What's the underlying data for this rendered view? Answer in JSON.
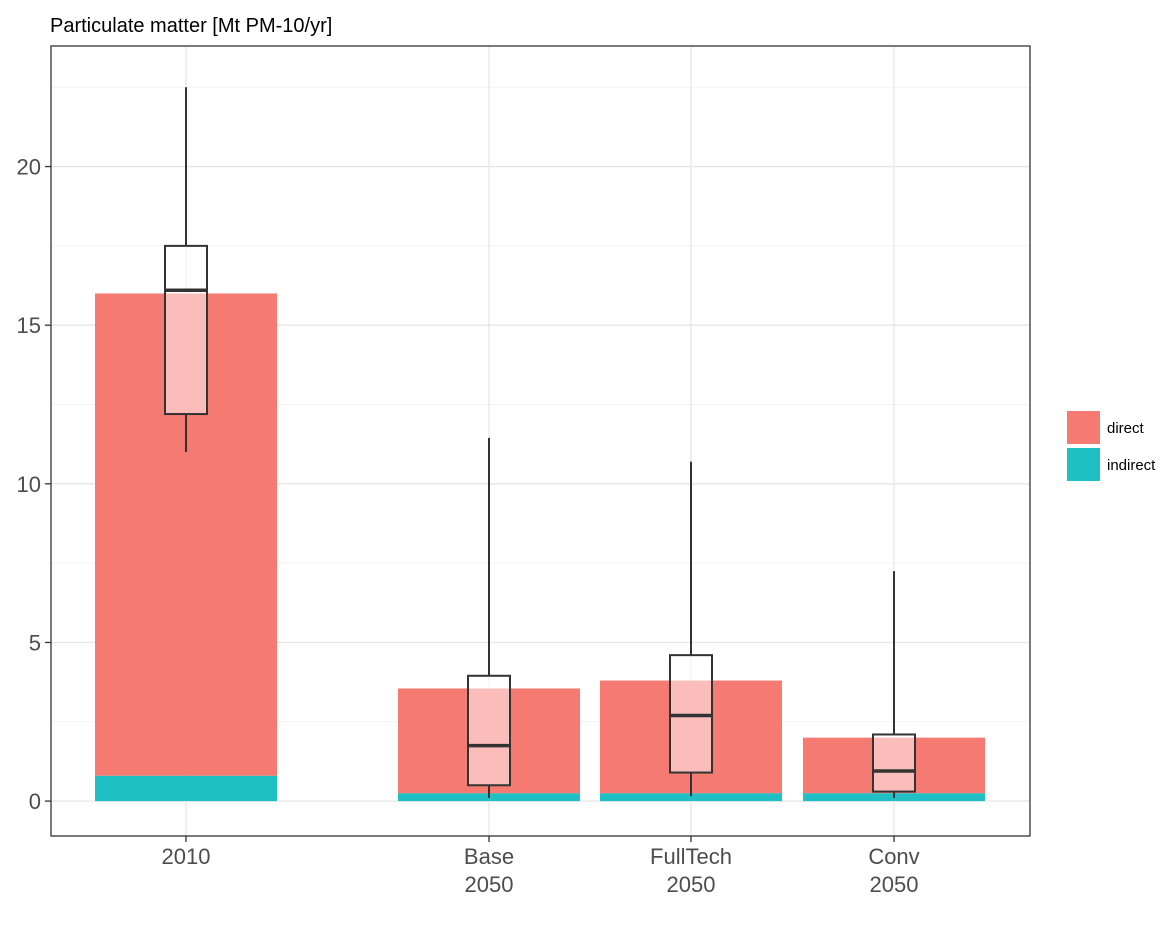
{
  "chart_data": {
    "type": "bar",
    "title": "Particulate matter [Mt PM-10/yr]",
    "xlabel": "",
    "ylabel": "",
    "ylim": [
      -1.1,
      23.8
    ],
    "yticks": [
      0,
      5,
      10,
      15,
      20
    ],
    "grid": true,
    "legend_placement": "right",
    "categories": [
      {
        "line1": "2010",
        "line2": ""
      },
      {
        "line1": "Base",
        "line2": "2050"
      },
      {
        "line1": "FullTech",
        "line2": "2050"
      },
      {
        "line1": "Conv",
        "line2": "2050"
      }
    ],
    "series": [
      {
        "name": "indirect",
        "color": "#1fbfc4",
        "values": [
          0.8,
          0.25,
          0.25,
          0.25
        ]
      },
      {
        "name": "direct",
        "color": "#f47a72",
        "values": [
          15.2,
          3.3,
          3.55,
          1.75
        ]
      }
    ],
    "boxplots": [
      {
        "whisker_low": 11.0,
        "q1": 12.2,
        "median": 16.1,
        "q3": 17.5,
        "whisker_high": 22.5
      },
      {
        "whisker_low": 0.1,
        "q1": 0.5,
        "median": 1.75,
        "q3": 3.95,
        "whisker_high": 11.45
      },
      {
        "whisker_low": 0.15,
        "q1": 0.9,
        "median": 2.7,
        "q3": 4.6,
        "whisker_high": 10.7
      },
      {
        "whisker_low": 0.1,
        "q1": 0.3,
        "median": 0.95,
        "q3": 2.1,
        "whisker_high": 7.25
      }
    ]
  }
}
